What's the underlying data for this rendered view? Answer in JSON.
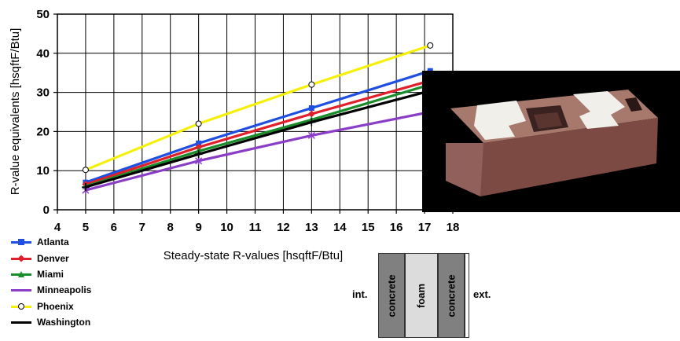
{
  "chart_data": {
    "type": "line",
    "xlabel": "Steady-state R-values [hsqftF/Btu]",
    "ylabel": "R-value equivalents [hsqftF/Btu]",
    "xlim": [
      4,
      18
    ],
    "ylim": [
      0,
      50
    ],
    "x_ticks": [
      "4",
      "5",
      "6",
      "7",
      "8",
      "9",
      "10",
      "11",
      "12",
      "13",
      "14",
      "15",
      "16",
      "17",
      "18"
    ],
    "y_ticks": [
      "0",
      "10",
      "20",
      "30",
      "40",
      "50"
    ],
    "grid": true,
    "legend_position": "bottom-left, below plot",
    "series": [
      {
        "name": "Atlanta",
        "color": "#1f4fe0",
        "marker": "square",
        "x": [
          5,
          9,
          13,
          17.2
        ],
        "y": [
          7,
          17,
          26,
          35.5
        ]
      },
      {
        "name": "Denver",
        "color": "#e0202a",
        "marker": "diamond",
        "x": [
          5,
          9,
          13,
          17.2
        ],
        "y": [
          6.5,
          16,
          24.5,
          33
        ]
      },
      {
        "name": "Miami",
        "color": "#1a8c2a",
        "marker": "triangle",
        "x": [
          5,
          9,
          13,
          17.2
        ],
        "y": [
          6,
          15,
          23,
          32
        ]
      },
      {
        "name": "Minneapolis",
        "color": "#8a3ec8",
        "marker": "asterisk",
        "x": [
          5,
          9,
          13,
          17.2
        ],
        "y": [
          5,
          12.5,
          19,
          25
        ]
      },
      {
        "name": "Phoenix",
        "color": "#f5f00a",
        "marker": "circle",
        "x": [
          5,
          9,
          13,
          17.2
        ],
        "y": [
          10.2,
          22,
          32,
          42
        ]
      },
      {
        "name": "Washington",
        "color": "#000000",
        "marker": "plus",
        "x": [
          5,
          9,
          13,
          17.2
        ],
        "y": [
          5.8,
          14.2,
          22.4,
          30.4
        ]
      }
    ]
  },
  "wall_diagram": {
    "int_label": "int.",
    "ext_label": "ext.",
    "layers": [
      "concrete",
      "foam",
      "concrete"
    ],
    "colors": {
      "concrete": "#808080",
      "foam": "#dcdcdc"
    }
  },
  "photo": {
    "background": "#000000",
    "block_color": "#8a5a50",
    "insulation_color": "#f2f0ea"
  }
}
